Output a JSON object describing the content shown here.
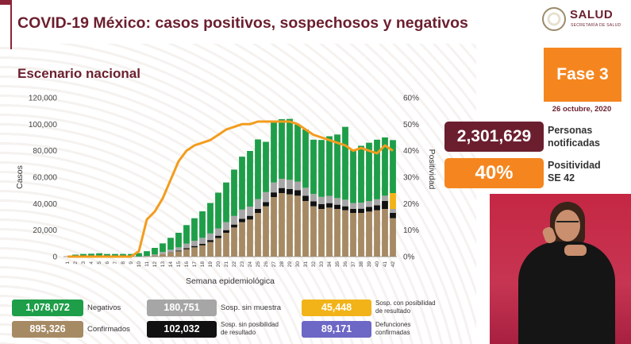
{
  "header": {
    "title": "COVID-19 México: casos positivos, sospechosos y negativos",
    "subtitle": "Escenario nacional",
    "logo_name": "SALUD",
    "logo_sub": "SECRETARÍA DE SALUD"
  },
  "fase": {
    "label": "Fase 3",
    "date": "26 octubre, 2020"
  },
  "kpis": [
    {
      "value": "2,301,629",
      "label_line1": "Personas",
      "label_line2": "notificadas",
      "color": "#6b1f2e"
    },
    {
      "value": "40%",
      "label_line1": "Positividad",
      "label_line2": "SE 42",
      "color": "#f5861f"
    }
  ],
  "legend": [
    {
      "value": "1,078,072",
      "label": "Negativos",
      "color": "#1e9e49"
    },
    {
      "value": "180,751",
      "label": "Sosp. sin muestra",
      "color": "#a6a6a6"
    },
    {
      "value": "45,448",
      "label_line1": "Sosp. con posibilidad",
      "label_line2": "de resultado",
      "color": "#f2b318"
    },
    {
      "value": "895,326",
      "label": "Confirmados",
      "color": "#a68a64"
    },
    {
      "value": "102,032",
      "label_line1": "Sosp. sin posibilidad",
      "label_line2": "de resultado",
      "color": "#111111"
    },
    {
      "value": "89,171",
      "label_line1": "Defunciones",
      "label_line2": "confirmadas",
      "color": "#6d67c6"
    }
  ],
  "chart_data": {
    "type": "bar",
    "stacked": true,
    "xlabel": "Semana epidemiológica",
    "ylabel": "Casos",
    "y2label": "Positividad",
    "ylim": [
      0,
      120000
    ],
    "y2lim": [
      0,
      60
    ],
    "yticks": [
      "0",
      "20,000",
      "40,000",
      "60,000",
      "80,000",
      "100,000",
      "120,000"
    ],
    "y2ticks": [
      "0%",
      "10%",
      "20%",
      "30%",
      "40%",
      "50%",
      "60%"
    ],
    "categories": [
      "1",
      "2",
      "3",
      "4",
      "5",
      "6",
      "7",
      "8",
      "9",
      "10",
      "11",
      "12",
      "13",
      "14",
      "15",
      "16",
      "17",
      "18",
      "19",
      "20",
      "21",
      "22",
      "23",
      "24",
      "25",
      "26",
      "27",
      "28",
      "29",
      "30",
      "31",
      "32",
      "33",
      "34",
      "35",
      "36",
      "37",
      "38",
      "39",
      "40",
      "41",
      "42"
    ],
    "series": [
      {
        "name": "Confirmados",
        "color": "#a68a64",
        "values": [
          0,
          0,
          0,
          0,
          0,
          0,
          0,
          0,
          0,
          50,
          300,
          1000,
          2000,
          3000,
          4000,
          5500,
          7000,
          8500,
          11000,
          14000,
          18000,
          22000,
          26000,
          28000,
          33000,
          38000,
          45000,
          48000,
          47000,
          46000,
          42000,
          38000,
          36000,
          37000,
          36000,
          35000,
          33000,
          33000,
          34000,
          35000,
          36000,
          29000
        ]
      },
      {
        "name": "Sosp. sin posibilidad de resultado",
        "color": "#111111",
        "values": [
          0,
          0,
          0,
          0,
          0,
          0,
          0,
          0,
          0,
          0,
          0,
          0,
          0,
          200,
          500,
          800,
          1000,
          1200,
          1500,
          1800,
          2000,
          2200,
          2500,
          2800,
          3000,
          3200,
          3500,
          3800,
          4000,
          4200,
          4000,
          3800,
          3600,
          3400,
          3200,
          3000,
          3000,
          3200,
          3500,
          3800,
          6000,
          4000
        ]
      },
      {
        "name": "Sosp. sin muestra",
        "color": "#a6a6a6",
        "values": [
          0,
          0,
          0,
          0,
          0,
          0,
          0,
          0,
          0,
          100,
          300,
          600,
          1500,
          2000,
          2500,
          3500,
          4000,
          4500,
          5000,
          5500,
          6000,
          6500,
          7000,
          7000,
          7500,
          7500,
          7500,
          7000,
          7000,
          6500,
          6000,
          5500,
          5500,
          5500,
          5000,
          5000,
          4500,
          4500,
          4500,
          4500,
          4000,
          3000
        ]
      },
      {
        "name": "Sosp. con posibilidad de resultado",
        "color": "#f2b318",
        "values": [
          0,
          0,
          0,
          0,
          0,
          0,
          0,
          0,
          0,
          0,
          0,
          0,
          0,
          0,
          0,
          0,
          0,
          0,
          0,
          0,
          0,
          0,
          0,
          0,
          0,
          0,
          0,
          0,
          0,
          0,
          0,
          0,
          0,
          0,
          0,
          0,
          0,
          0,
          0,
          0,
          0,
          12000
        ]
      },
      {
        "name": "Negativos",
        "color": "#1e9e49",
        "values": [
          0,
          1500,
          2000,
          2200,
          2500,
          2000,
          2000,
          2000,
          2000,
          2500,
          3500,
          5000,
          6500,
          9000,
          11000,
          14000,
          17000,
          20000,
          23000,
          27000,
          30000,
          35000,
          40000,
          42000,
          45000,
          38000,
          46000,
          45000,
          46000,
          43000,
          44000,
          41000,
          43000,
          45000,
          48000,
          55000,
          40000,
          43000,
          44000,
          45000,
          44000,
          40000
        ]
      }
    ],
    "line": {
      "name": "Positividad",
      "color": "#f39c1e",
      "values": [
        0,
        0,
        0,
        0,
        0,
        0,
        0,
        0,
        0,
        2,
        14,
        17,
        22,
        29,
        36,
        40,
        42,
        43,
        44,
        46,
        48,
        49,
        50,
        50,
        51,
        51,
        51,
        51,
        51,
        50,
        48,
        46,
        45,
        44,
        43,
        42,
        40,
        41,
        40,
        39,
        42,
        40
      ]
    }
  }
}
